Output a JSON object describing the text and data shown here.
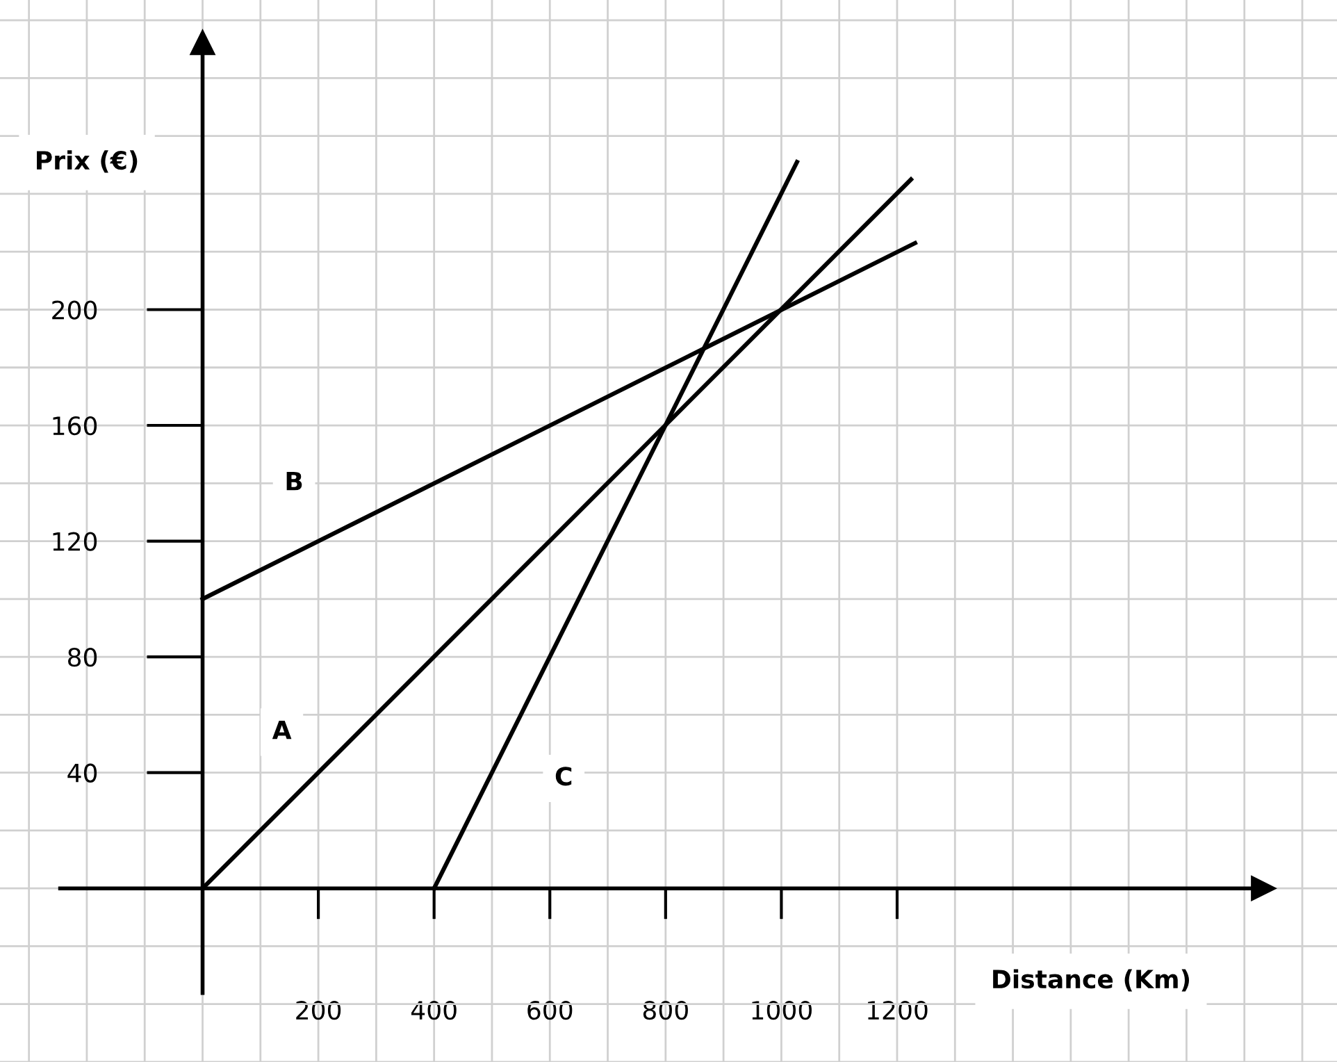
{
  "chart_data": {
    "type": "line",
    "xlabel": "Distance (Km)",
    "ylabel": "Prix (€)",
    "series": [
      {
        "color": "#000000",
        "x": [
          0,
          1224
        ],
        "values": [
          0,
          245
        ]
      },
      {
        "color": "#000000",
        "x": [
          0,
          1231
        ],
        "values": [
          100,
          223
        ]
      },
      {
        "color": "#000000",
        "x": [
          400,
          1027
        ],
        "values": [
          0,
          251
        ]
      }
    ],
    "annotations": [
      {
        "text": "A",
        "x": 137,
        "y": 54
      },
      {
        "text": "B",
        "x": 158,
        "y": 140
      },
      {
        "text": "C",
        "x": 624,
        "y": 38
      }
    ],
    "xlim": [
      -350,
      1960
    ],
    "ylim": [
      -60,
      307
    ],
    "xticks": [
      200,
      400,
      600,
      800,
      1000,
      1200
    ],
    "yticks": [
      40,
      80,
      120,
      160,
      200
    ],
    "grid": true,
    "marker": "none",
    "line_style": "solid",
    "legend": false
  }
}
